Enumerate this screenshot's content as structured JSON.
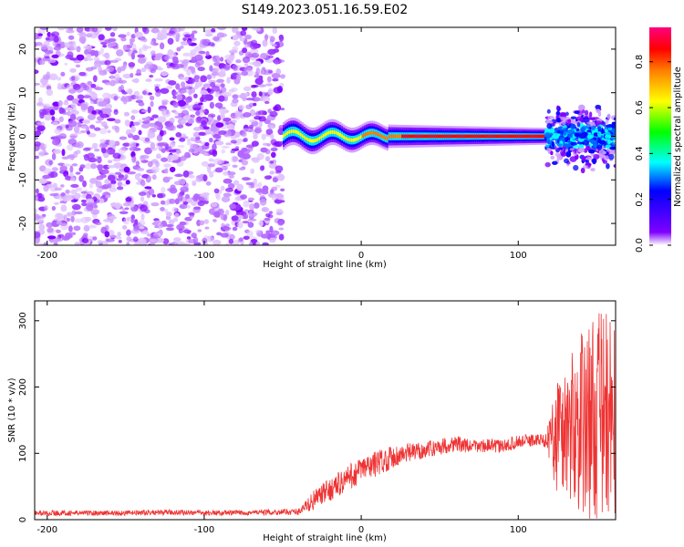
{
  "title": "S149.2023.051.16.59.E02",
  "colors": {
    "background": "#ffffff",
    "axes": "#000000",
    "snr_line": "#ee3333",
    "noise_purple": "#7f00ff"
  },
  "chart_data": [
    {
      "type": "heatmap",
      "title": "S149.2023.051.16.59.E02",
      "xlabel": "Height of straight line (km)",
      "ylabel": "Frequency (Hz)",
      "xlim": [
        -208,
        162
      ],
      "ylim": [
        -25,
        25
      ],
      "xticks": [
        -200,
        -100,
        0,
        100
      ],
      "yticks": [
        -20,
        -10,
        0,
        10,
        20
      ],
      "colormap": "rainbow (purple = low, red = high)",
      "colorbar": {
        "label": "Normalized spectral amplitude",
        "range": [
          0.0,
          0.95
        ],
        "ticks": [
          0.0,
          0.2,
          0.4,
          0.6,
          0.8
        ]
      },
      "regions": [
        {
          "x_range": [
            -208,
            -50
          ],
          "freq_range": [
            -25,
            25
          ],
          "description": "scattered low-amplitude noise (purple, 0.0-0.2)"
        },
        {
          "x_range": [
            -50,
            118
          ],
          "freq_center": 0,
          "freq_halfwidth": 2,
          "description": "narrow band centered near 0 Hz, amplitude rising toward 0.9 (red core)"
        },
        {
          "x_range": [
            118,
            162
          ],
          "freq_range": [
            -8,
            8
          ],
          "description": "broadened band, mostly blue/cyan (0.2-0.4)"
        }
      ]
    },
    {
      "type": "line",
      "title": "",
      "xlabel": "Height of straight line (km)",
      "ylabel": "SNR (10 * v/v)",
      "xlim": [
        -208,
        162
      ],
      "ylim": [
        0,
        330
      ],
      "xticks": [
        -200,
        -100,
        0,
        100
      ],
      "yticks": [
        0,
        100,
        200,
        300
      ],
      "series": [
        {
          "x": [
            -208,
            -180,
            -150,
            -120,
            -90,
            -60,
            -40,
            -35,
            -30,
            -20,
            -10,
            0,
            10,
            20,
            30,
            40,
            50,
            60,
            70,
            80,
            90,
            100,
            110,
            118,
            125,
            135,
            145,
            155,
            162
          ],
          "values": [
            10,
            10,
            10,
            11,
            10,
            11,
            12,
            20,
            30,
            45,
            60,
            75,
            85,
            95,
            100,
            105,
            110,
            115,
            110,
            112,
            110,
            118,
            120,
            120,
            130,
            140,
            150,
            160,
            150
          ],
          "envelope_spread": [
            8,
            8,
            8,
            8,
            8,
            8,
            10,
            20,
            30,
            35,
            40,
            40,
            40,
            35,
            30,
            25,
            25,
            25,
            20,
            20,
            20,
            20,
            20,
            20,
            200,
            240,
            300,
            320,
            280
          ]
        }
      ]
    }
  ]
}
